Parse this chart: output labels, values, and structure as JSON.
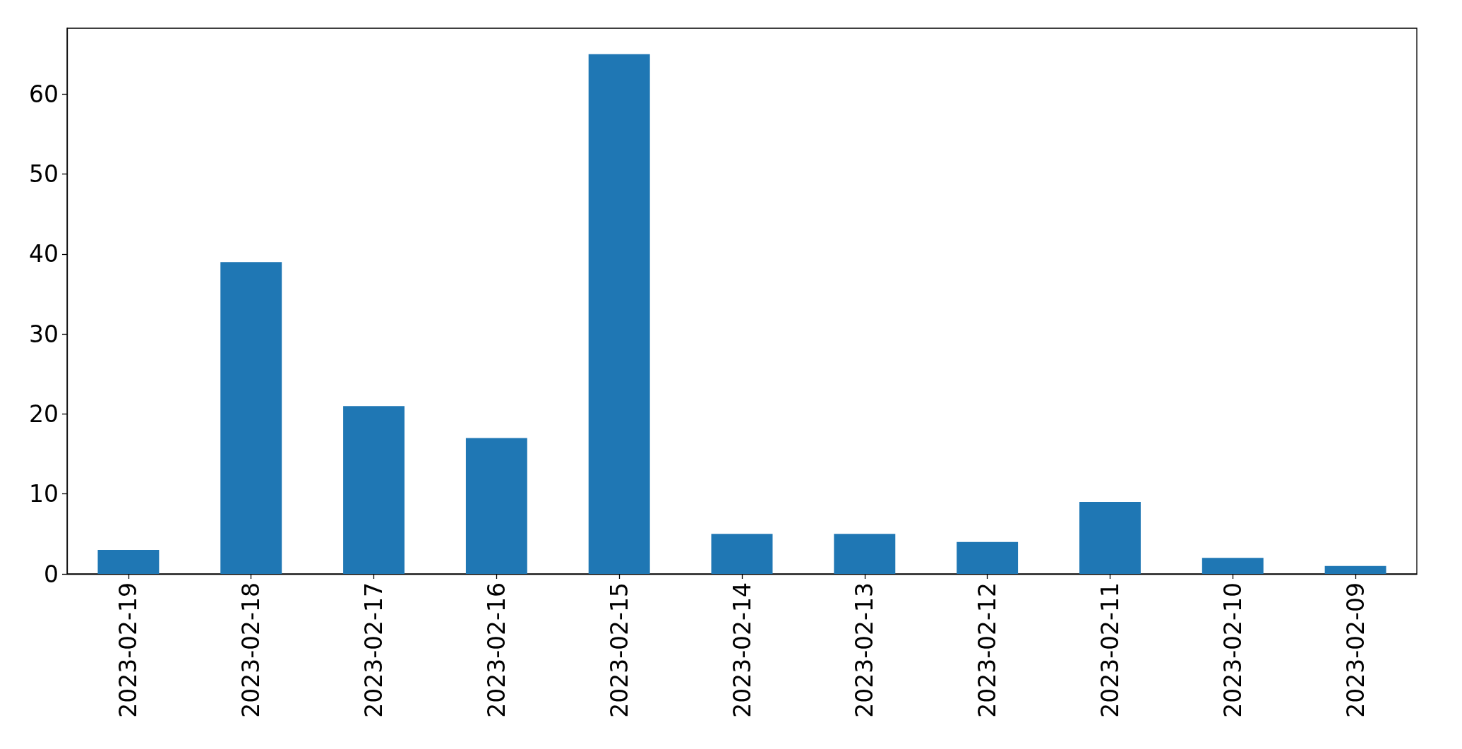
{
  "chart_data": {
    "type": "bar",
    "categories": [
      "2023-02-19",
      "2023-02-18",
      "2023-02-17",
      "2023-02-16",
      "2023-02-15",
      "2023-02-14",
      "2023-02-13",
      "2023-02-12",
      "2023-02-11",
      "2023-02-10",
      "2023-02-09"
    ],
    "values": [
      3,
      39,
      21,
      17,
      65,
      5,
      5,
      4,
      9,
      2,
      1
    ],
    "color": "#1f77b4",
    "ylim": [
      0,
      68.25
    ],
    "yticks": [
      0,
      10,
      20,
      30,
      40,
      50,
      60
    ],
    "grid": false
  }
}
